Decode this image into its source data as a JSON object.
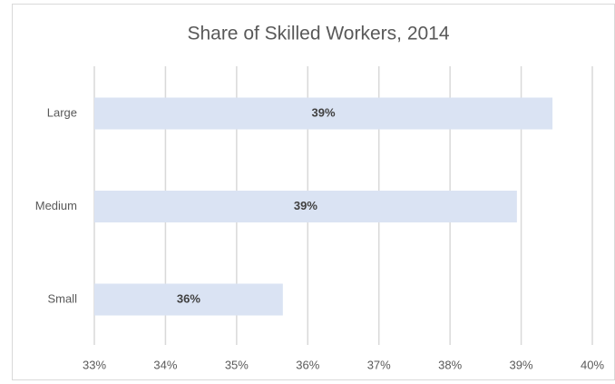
{
  "chart_data": {
    "type": "bar",
    "orientation": "horizontal",
    "title": "Share of Skilled Workers, 2014",
    "categories": [
      "Large",
      "Medium",
      "Small"
    ],
    "values": [
      39.44,
      38.94,
      35.65
    ],
    "value_labels": [
      "39%",
      "39%",
      "36%"
    ],
    "color": "#dae3f3",
    "xlim": [
      33,
      40
    ],
    "xticks": [
      {
        "value": 33,
        "label": "33%"
      },
      {
        "value": 34,
        "label": "34%"
      },
      {
        "value": 35,
        "label": "35%"
      },
      {
        "value": 36,
        "label": "36%"
      },
      {
        "value": 37,
        "label": "37%"
      },
      {
        "value": 38,
        "label": "38%"
      },
      {
        "value": 39,
        "label": "39%"
      },
      {
        "value": 40,
        "label": "40%"
      }
    ],
    "grid": true
  }
}
